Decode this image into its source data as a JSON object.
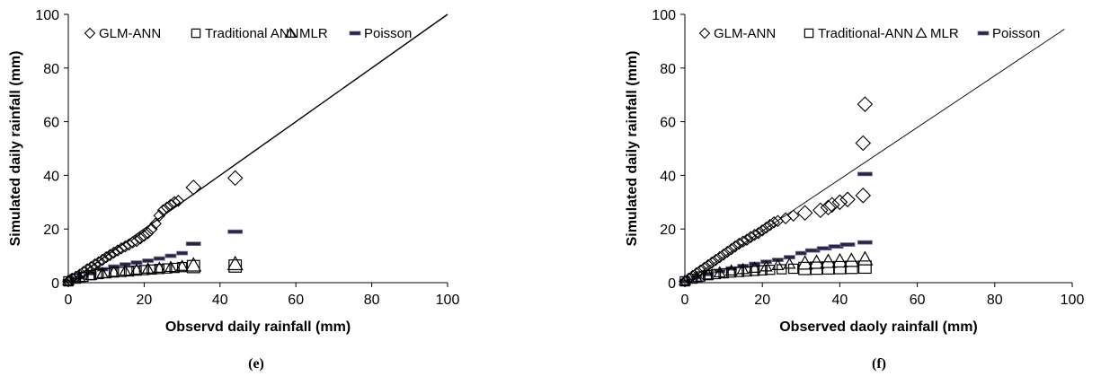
{
  "chart_data": [
    {
      "type": "scatter",
      "panel_label": "(e)",
      "xlabel": "Observd daily rainfall (mm)",
      "ylabel": "Simulated daily rainfall (mm)",
      "xlim": [
        0,
        100
      ],
      "ylim": [
        0,
        100
      ],
      "xticks": [
        "0",
        "20",
        "40",
        "60",
        "80",
        "100"
      ],
      "yticks": [
        "0",
        "20",
        "40",
        "60",
        "80",
        "100"
      ],
      "grid": false,
      "legend_position": "top-left",
      "reference_line": [
        [
          0,
          0
        ],
        [
          100,
          100
        ]
      ],
      "series": [
        {
          "name": "GLM-ANN",
          "marker": "diamond",
          "points": [
            [
              0,
              0.5
            ],
            [
              0.5,
              1
            ],
            [
              1,
              1.5
            ],
            [
              2,
              2.2
            ],
            [
              3,
              3
            ],
            [
              4,
              4
            ],
            [
              5,
              5
            ],
            [
              6,
              5.8
            ],
            [
              7,
              6.8
            ],
            [
              8,
              7.6
            ],
            [
              9,
              8.5
            ],
            [
              10,
              9.5
            ],
            [
              11,
              10.3
            ],
            [
              12,
              11.2
            ],
            [
              13,
              12
            ],
            [
              14,
              12.8
            ],
            [
              15,
              13.5
            ],
            [
              16,
              14.2
            ],
            [
              17,
              15
            ],
            [
              18,
              15.5
            ],
            [
              19,
              16.5
            ],
            [
              20,
              17.5
            ],
            [
              21,
              18.5
            ],
            [
              22,
              20
            ],
            [
              23,
              22
            ],
            [
              24,
              25
            ],
            [
              25,
              27
            ],
            [
              26,
              28
            ],
            [
              27,
              29
            ],
            [
              28,
              30
            ],
            [
              29,
              30.5
            ],
            [
              33,
              35.5
            ],
            [
              44,
              39
            ]
          ]
        },
        {
          "name": "Traditional ANN",
          "marker": "square",
          "points": [
            [
              0,
              0.5
            ],
            [
              2,
              1.5
            ],
            [
              4,
              2.2
            ],
            [
              6,
              2.8
            ],
            [
              8,
              3.2
            ],
            [
              10,
              3.5
            ],
            [
              12,
              3.8
            ],
            [
              14,
              4
            ],
            [
              16,
              4.2
            ],
            [
              18,
              4.5
            ],
            [
              20,
              4.7
            ],
            [
              22,
              4.9
            ],
            [
              24,
              5.1
            ],
            [
              26,
              5.3
            ],
            [
              28,
              5.5
            ],
            [
              30,
              5.8
            ],
            [
              33,
              6
            ],
            [
              44,
              6.2
            ]
          ]
        },
        {
          "name": "MLR",
          "marker": "triangle",
          "points": [
            [
              0,
              0.8
            ],
            [
              3,
              2
            ],
            [
              6,
              2.8
            ],
            [
              9,
              3.5
            ],
            [
              12,
              4
            ],
            [
              15,
              4.4
            ],
            [
              18,
              4.8
            ],
            [
              21,
              5.2
            ],
            [
              24,
              5.5
            ],
            [
              27,
              5.8
            ],
            [
              30,
              6.2
            ],
            [
              33,
              6.5
            ],
            [
              44,
              7
            ]
          ]
        },
        {
          "name": "Poisson",
          "marker": "dash",
          "points": [
            [
              0,
              0.5
            ],
            [
              3,
              2
            ],
            [
              6,
              3.5
            ],
            [
              9,
              5
            ],
            [
              12,
              6
            ],
            [
              15,
              6.8
            ],
            [
              18,
              7.5
            ],
            [
              21,
              8.2
            ],
            [
              24,
              9
            ],
            [
              27,
              10
            ],
            [
              30,
              11
            ],
            [
              33,
              14.5
            ],
            [
              44,
              19
            ]
          ]
        }
      ]
    },
    {
      "type": "scatter",
      "panel_label": "(f)",
      "xlabel": "Observed daoly rainfall (mm)",
      "ylabel": "Simulated daily rainfall (mm)",
      "xlim": [
        0,
        100
      ],
      "ylim": [
        0,
        100
      ],
      "xticks": [
        "0",
        "20",
        "40",
        "60",
        "80",
        "100"
      ],
      "yticks": [
        "0",
        "20",
        "40",
        "60",
        "80",
        "100"
      ],
      "grid": false,
      "legend_position": "top-left",
      "reference_line": [
        [
          0,
          0
        ],
        [
          98,
          94.5
        ]
      ],
      "series": [
        {
          "name": "GLM-ANN",
          "marker": "diamond",
          "points": [
            [
              0,
              0.5
            ],
            [
              1,
              1.5
            ],
            [
              2,
              2.5
            ],
            [
              3,
              3.5
            ],
            [
              4,
              4.5
            ],
            [
              5,
              5.5
            ],
            [
              6,
              6.5
            ],
            [
              7,
              7.5
            ],
            [
              8,
              8.5
            ],
            [
              9,
              9.5
            ],
            [
              10,
              10.5
            ],
            [
              11,
              11.5
            ],
            [
              12,
              12.5
            ],
            [
              13,
              13.5
            ],
            [
              14,
              14.5
            ],
            [
              15,
              15.3
            ],
            [
              16,
              16
            ],
            [
              17,
              17
            ],
            [
              18,
              17.8
            ],
            [
              19,
              18.5
            ],
            [
              20,
              19.5
            ],
            [
              21,
              20.5
            ],
            [
              22,
              21.5
            ],
            [
              23,
              22.5
            ],
            [
              24,
              23
            ],
            [
              26,
              24
            ],
            [
              28,
              25
            ],
            [
              31,
              26
            ],
            [
              35,
              27
            ],
            [
              37,
              28
            ],
            [
              38,
              29
            ],
            [
              40,
              30
            ],
            [
              42,
              31
            ],
            [
              46,
              32.5
            ],
            [
              46,
              52
            ],
            [
              46.5,
              66.5
            ]
          ]
        },
        {
          "name": "Traditional-ANN",
          "marker": "square",
          "points": [
            [
              0,
              0.5
            ],
            [
              2,
              1.5
            ],
            [
              4,
              2.3
            ],
            [
              6,
              2.8
            ],
            [
              8,
              3.2
            ],
            [
              10,
              3.5
            ],
            [
              12,
              3.8
            ],
            [
              14,
              4
            ],
            [
              16,
              4.2
            ],
            [
              18,
              4.4
            ],
            [
              20,
              4.6
            ],
            [
              22,
              4.8
            ],
            [
              25,
              5
            ],
            [
              28,
              5.2
            ],
            [
              31,
              5.3
            ],
            [
              34,
              5.4
            ],
            [
              37,
              5.5
            ],
            [
              40,
              5.6
            ],
            [
              43,
              5.7
            ],
            [
              46.5,
              5.8
            ]
          ]
        },
        {
          "name": "MLR",
          "marker": "triangle",
          "points": [
            [
              0,
              0.8
            ],
            [
              3,
              2
            ],
            [
              6,
              3
            ],
            [
              9,
              3.8
            ],
            [
              12,
              4.5
            ],
            [
              15,
              5
            ],
            [
              18,
              5.5
            ],
            [
              21,
              6
            ],
            [
              24,
              6.5
            ],
            [
              27,
              7
            ],
            [
              31,
              7.2
            ],
            [
              34,
              7.5
            ],
            [
              37,
              7.8
            ],
            [
              40,
              8
            ],
            [
              43,
              8.2
            ],
            [
              46.5,
              8.8
            ]
          ]
        },
        {
          "name": "Poisson",
          "marker": "dash",
          "points": [
            [
              0,
              0.5
            ],
            [
              3,
              2
            ],
            [
              6,
              3.2
            ],
            [
              9,
              4.3
            ],
            [
              12,
              5.3
            ],
            [
              15,
              6.2
            ],
            [
              18,
              7
            ],
            [
              21,
              7.8
            ],
            [
              24,
              8.5
            ],
            [
              27,
              9.5
            ],
            [
              30,
              11
            ],
            [
              33,
              12
            ],
            [
              36,
              12.8
            ],
            [
              39,
              13.5
            ],
            [
              42,
              14.2
            ],
            [
              46.5,
              15
            ],
            [
              46.5,
              40.5
            ]
          ]
        }
      ]
    }
  ]
}
